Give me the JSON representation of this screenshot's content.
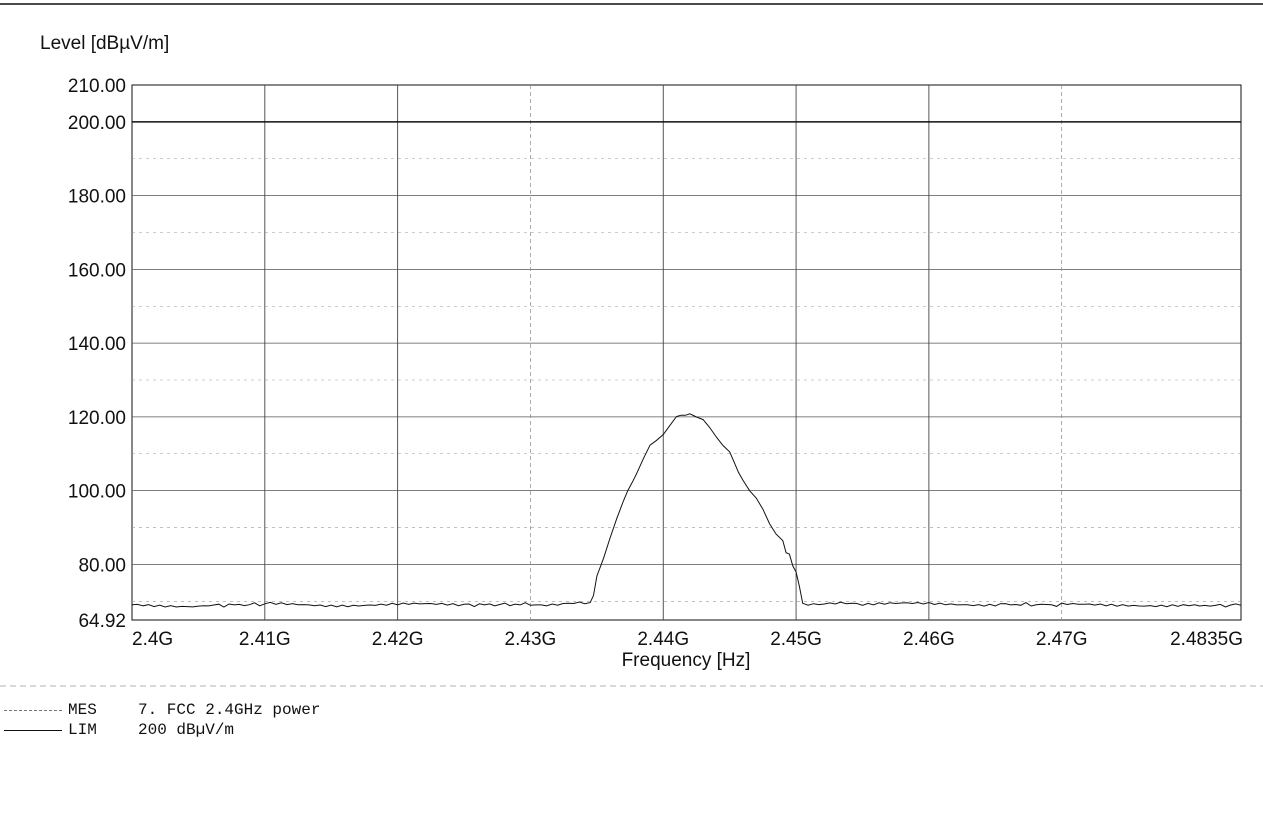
{
  "chart_data": {
    "type": "line",
    "ylabel": "Level [dBµV/m]",
    "xlabel": "Frequency [Hz]",
    "y_ticks": [
      "210.00",
      "200.00",
      "180.00",
      "160.00",
      "140.00",
      "120.00",
      "100.00",
      "80.00",
      "64.92"
    ],
    "x_ticks": [
      "2.4G",
      "2.41G",
      "2.42G",
      "2.43G",
      "2.44G",
      "2.45G",
      "2.46G",
      "2.47G",
      "2.4835G"
    ],
    "xlim": [
      2.4,
      2.4835
    ],
    "ylim": [
      64.92,
      210.0
    ],
    "series": [
      {
        "name": "MES 7. FCC 2.4GHz power",
        "x": [
          2.4,
          2.405,
          2.41,
          2.415,
          2.42,
          2.425,
          2.43,
          2.4345,
          2.435,
          2.436,
          2.437,
          2.438,
          2.439,
          2.44,
          2.441,
          2.442,
          2.443,
          2.444,
          2.445,
          2.446,
          2.447,
          2.448,
          2.449,
          2.4495,
          2.45,
          2.4505,
          2.455,
          2.46,
          2.465,
          2.47,
          2.475,
          2.48,
          2.4835
        ],
        "y": [
          69,
          68.8,
          69.2,
          69,
          69.1,
          69,
          69.2,
          69.3,
          76,
          88,
          97,
          106,
          112,
          116,
          119,
          121,
          118,
          115,
          110,
          104,
          98,
          92,
          86,
          82,
          78,
          69.5,
          69.1,
          69.3,
          69.2,
          69,
          69.1,
          68.8,
          68.9
        ]
      },
      {
        "name": "LIM 200 dBµV/m",
        "x": [
          2.4,
          2.4835
        ],
        "y": [
          200,
          200
        ]
      }
    ],
    "grid": true
  },
  "legend": [
    {
      "code": "MES",
      "text": "7. FCC 2.4GHz power"
    },
    {
      "code": "LIM",
      "text": "200 dBµV/m"
    }
  ]
}
